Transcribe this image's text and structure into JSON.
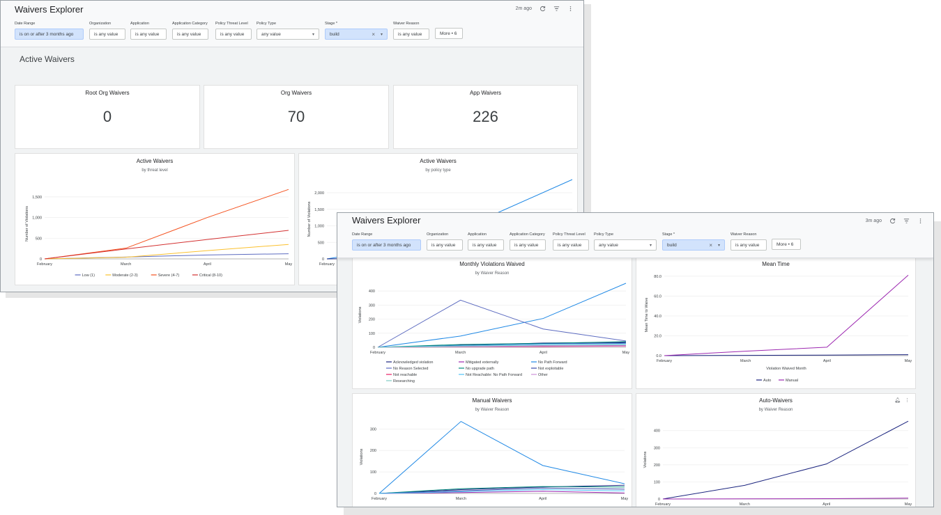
{
  "back_window": {
    "title": "Waivers Explorer",
    "refresh_time": "2m ago",
    "filters": [
      {
        "label": "Date Range",
        "value": "is on or after 3 months ago",
        "selected": true
      },
      {
        "label": "Organization",
        "value": "is any value"
      },
      {
        "label": "Application",
        "value": "is any value"
      },
      {
        "label": "Application Category",
        "value": "is any value"
      },
      {
        "label": "Policy Threat Level",
        "value": "is any value"
      },
      {
        "label": "Policy Type",
        "value": "any value"
      },
      {
        "label": "Stage *",
        "value": "build",
        "selected": true
      },
      {
        "label": "Waiver Reason",
        "value": "is any value"
      },
      {
        "label": "",
        "value": "More • 6"
      }
    ],
    "section_title": "Active Waivers",
    "kpis": [
      {
        "label": "Root Org Waivers",
        "value": "0"
      },
      {
        "label": "Org Waivers",
        "value": "70"
      },
      {
        "label": "App Waivers",
        "value": "226"
      }
    ]
  },
  "front_window": {
    "title": "Waivers Explorer",
    "refresh_time": "3m ago",
    "filters": [
      {
        "label": "Date Range",
        "value": "is on or after 3 months ago",
        "selected": true
      },
      {
        "label": "Organization",
        "value": "is any value"
      },
      {
        "label": "Application",
        "value": "is any value"
      },
      {
        "label": "Application Category",
        "value": "is any value"
      },
      {
        "label": "Policy Threat Level",
        "value": "is any value"
      },
      {
        "label": "Policy Type",
        "value": "any value"
      },
      {
        "label": "Stage *",
        "value": "build",
        "selected": true
      },
      {
        "label": "Waiver Reason",
        "value": "is any value"
      },
      {
        "label": "",
        "value": "More • 6"
      }
    ]
  },
  "colors": {
    "low": "#5c6bc0",
    "moderate": "#fbc02d",
    "severe": "#f4511e",
    "critical": "#d32f2f",
    "blue": "#1e88e5",
    "navy": "#1a237e",
    "purple": "#9c27b0",
    "teal": "#26a69a"
  },
  "chart_data": [
    {
      "id": "threat",
      "type": "line",
      "title": "Active Waivers",
      "subtitle": "by threat level",
      "xlabel": "",
      "ylabel": "Number of Violations",
      "categories": [
        "February",
        "March",
        "April",
        "May"
      ],
      "ylim": [
        0,
        1700
      ],
      "yticks": [
        0,
        500,
        1000,
        1500
      ],
      "ytick_labels": [
        "0",
        "500",
        "1,000",
        "1,500"
      ],
      "legend_position": "bottom",
      "series": [
        {
          "name": "Low (1)",
          "color": "#5c6bc0",
          "values": [
            0,
            45,
            95,
            125
          ]
        },
        {
          "name": "Moderate (2-3)",
          "color": "#fbc02d",
          "values": [
            0,
            40,
            200,
            350
          ]
        },
        {
          "name": "Severe (4-7)",
          "color": "#f4511e",
          "values": [
            0,
            260,
            1000,
            1680
          ]
        },
        {
          "name": "Critical (8-10)",
          "color": "#d32f2f",
          "values": [
            0,
            240,
            470,
            690
          ]
        }
      ]
    },
    {
      "id": "policy",
      "type": "line",
      "title": "Active Waivers",
      "subtitle": "by policy type",
      "xlabel": "",
      "ylabel": "Number of Violations",
      "categories": [
        "February",
        "March",
        "April",
        "May"
      ],
      "ylim": [
        0,
        2400
      ],
      "yticks": [
        0,
        500,
        1000,
        1500,
        2000
      ],
      "ytick_labels": [
        "0",
        "500",
        "1,000",
        "1,500",
        "2,000"
      ],
      "legend_position": "bottom",
      "series": [
        {
          "color": "#1e88e5",
          "values": [
            0,
            400,
            1300,
            2400
          ]
        },
        {
          "color": "#1a237e",
          "values": [
            0,
            30,
            60,
            90
          ]
        }
      ]
    },
    {
      "id": "monthly",
      "type": "line",
      "title": "Monthly Violations Waived",
      "subtitle": "by Waiver Reason",
      "xlabel": "",
      "ylabel": "Violations",
      "categories": [
        "February",
        "March",
        "April",
        "May"
      ],
      "ylim": [
        0,
        460
      ],
      "yticks": [
        0,
        100,
        200,
        300,
        400
      ],
      "ytick_labels": [
        "0",
        "100",
        "200",
        "300",
        "400"
      ],
      "legend_position": "bottom",
      "series": [
        {
          "name": "Acknowledged violation",
          "color": "#1a237e",
          "values": [
            0,
            15,
            30,
            35
          ]
        },
        {
          "name": "Mitigated externally",
          "color": "#9c27b0",
          "values": [
            0,
            5,
            10,
            12
          ]
        },
        {
          "name": "No Path Forward",
          "color": "#1e88e5",
          "values": [
            0,
            80,
            205,
            455
          ]
        },
        {
          "name": "No Reason Selected",
          "color": "#5c6bc0",
          "values": [
            0,
            335,
            130,
            45
          ]
        },
        {
          "name": "No upgrade path",
          "color": "#00897b",
          "values": [
            0,
            20,
            28,
            40
          ]
        },
        {
          "name": "Not exploitable",
          "color": "#3949ab",
          "values": [
            0,
            10,
            25,
            30
          ]
        },
        {
          "name": "Not reachable",
          "color": "#e91e63",
          "values": [
            0,
            3,
            5,
            8
          ]
        },
        {
          "name": "Not Reachable: No Path Forward",
          "color": "#4fc3f7",
          "values": [
            0,
            12,
            22,
            25
          ]
        },
        {
          "name": "Other",
          "color": "#ce93d8",
          "values": [
            0,
            4,
            8,
            10
          ]
        },
        {
          "name": "Researching",
          "color": "#80cbc4",
          "values": [
            0,
            8,
            15,
            18
          ]
        }
      ]
    },
    {
      "id": "mean",
      "type": "line",
      "title": "Mean Time",
      "subtitle": "",
      "xlabel": "Violation Waived Month",
      "ylabel": "Mean Time to Waive",
      "categories": [
        "February",
        "March",
        "April",
        "May"
      ],
      "ylim": [
        0,
        82
      ],
      "yticks": [
        0,
        20,
        40,
        60,
        80
      ],
      "ytick_labels": [
        "0.0",
        "20.0",
        "40.0",
        "60.0",
        "80.0"
      ],
      "legend_position": "bottom",
      "series": [
        {
          "name": "Auto",
          "color": "#1a237e",
          "values": [
            0,
            0.3,
            0.5,
            1
          ]
        },
        {
          "name": "Manual",
          "color": "#9c27b0",
          "values": [
            0,
            4.5,
            8.5,
            81
          ]
        }
      ]
    },
    {
      "id": "manual",
      "type": "line",
      "title": "Manual Waivers",
      "subtitle": "by Waiver Reason",
      "xlabel": "",
      "ylabel": "Violations",
      "categories": [
        "February",
        "March",
        "April",
        "May"
      ],
      "ylim": [
        0,
        340
      ],
      "yticks": [
        0,
        100,
        200,
        300
      ],
      "ytick_labels": [
        "0",
        "100",
        "200",
        "300"
      ],
      "legend_position": "bottom",
      "series": [
        {
          "color": "#1e88e5",
          "values": [
            0,
            335,
            130,
            45
          ]
        },
        {
          "color": "#1a237e",
          "values": [
            0,
            18,
            30,
            38
          ]
        },
        {
          "color": "#00897b",
          "values": [
            0,
            22,
            32,
            30
          ]
        },
        {
          "color": "#3949ab",
          "values": [
            0,
            12,
            25,
            20
          ]
        },
        {
          "color": "#9c27b0",
          "values": [
            0,
            4,
            10,
            2
          ]
        },
        {
          "color": "#4fc3f7",
          "values": [
            0,
            8,
            18,
            12
          ]
        }
      ]
    },
    {
      "id": "auto",
      "type": "line",
      "title": "Auto-Waivers",
      "subtitle": "by Waiver Reason",
      "xlabel": "",
      "ylabel": "Violations",
      "categories": [
        "February",
        "March",
        "April",
        "May"
      ],
      "ylim": [
        0,
        460
      ],
      "yticks": [
        0,
        100,
        200,
        300,
        400
      ],
      "ytick_labels": [
        "0",
        "100",
        "200",
        "300",
        "400"
      ],
      "legend_position": "bottom",
      "series": [
        {
          "color": "#1a237e",
          "values": [
            0,
            80,
            205,
            455
          ]
        },
        {
          "color": "#9c27b0",
          "values": [
            0,
            1,
            2,
            5
          ]
        }
      ]
    }
  ]
}
